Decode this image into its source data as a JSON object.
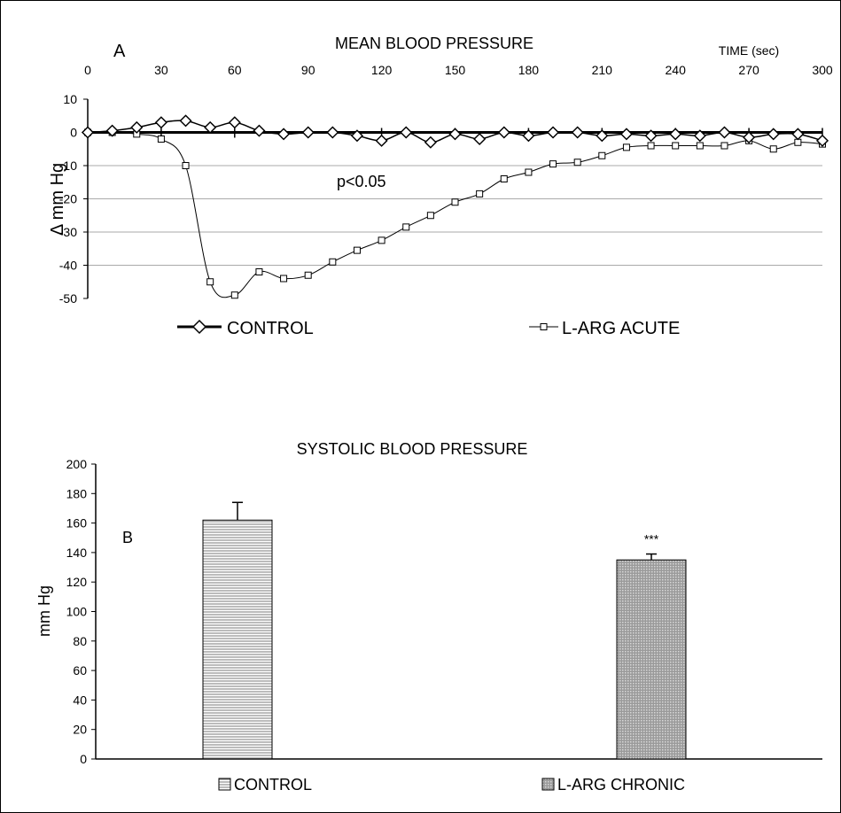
{
  "chart_data": [
    {
      "type": "line",
      "panel_label": "A",
      "title": "MEAN BLOOD PRESSURE",
      "xlabel": "TIME (sec)",
      "ylabel": "Δ mm Hg",
      "x_ticks": [
        0,
        30,
        60,
        90,
        120,
        150,
        180,
        210,
        240,
        270,
        300
      ],
      "y_ticks": [
        10,
        0,
        -10,
        -20,
        -30,
        -40,
        -50
      ],
      "xlim": [
        0,
        300
      ],
      "ylim": [
        -50,
        10
      ],
      "grid": "horizontal",
      "annotation": "p<0.05",
      "x": [
        0,
        10,
        20,
        30,
        40,
        50,
        60,
        70,
        80,
        90,
        100,
        110,
        120,
        130,
        140,
        150,
        160,
        170,
        180,
        190,
        200,
        210,
        220,
        230,
        240,
        250,
        260,
        270,
        280,
        290,
        300
      ],
      "series": [
        {
          "name": "CONTROL",
          "marker": "diamond",
          "values": [
            0,
            0.5,
            1.5,
            3,
            3.5,
            1.5,
            3,
            0.5,
            -0.5,
            0,
            0,
            -1,
            -2.5,
            0,
            -3,
            -0.5,
            -2,
            0,
            -1,
            0,
            0,
            -1,
            -0.5,
            -1,
            -0.5,
            -1,
            0,
            -1.5,
            -0.5,
            -0.5,
            -2.5
          ]
        },
        {
          "name": "L-ARG ACUTE",
          "marker": "square",
          "values": [
            0,
            0,
            -0.5,
            -2,
            -10,
            -45,
            -49,
            -42,
            -44,
            -43,
            -39,
            -35.5,
            -32.5,
            -28.5,
            -25,
            -21,
            -18.5,
            -14,
            -12,
            -9.5,
            -9,
            -7,
            -4.5,
            -4,
            -4,
            -4,
            -4,
            -2.5,
            -5,
            -3,
            -3.5
          ]
        }
      ]
    },
    {
      "type": "bar",
      "panel_label": "B",
      "title": "SYSTOLIC BLOOD PRESSURE",
      "ylabel": "mm Hg",
      "y_ticks": [
        0,
        20,
        40,
        60,
        80,
        100,
        120,
        140,
        160,
        180,
        200
      ],
      "ylim": [
        0,
        200
      ],
      "categories": [
        "CONTROL",
        "L-ARG CHRONIC"
      ],
      "values": [
        162,
        135
      ],
      "errors": [
        12,
        4
      ],
      "annotations": [
        "",
        "***"
      ],
      "legend": [
        "CONTROL",
        "L-ARG CHRONIC"
      ]
    }
  ]
}
